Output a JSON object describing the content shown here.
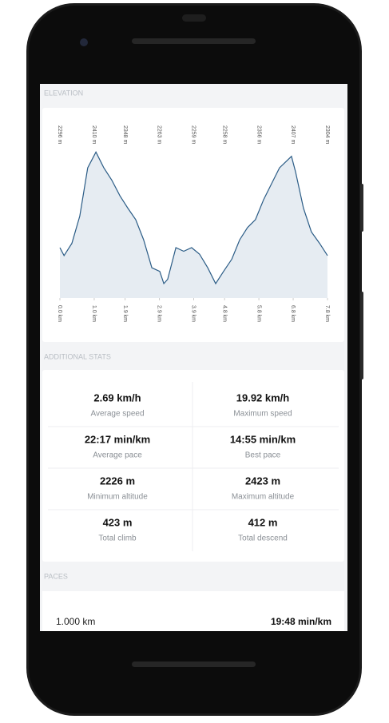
{
  "headings": {
    "elevation": "ELEVATION",
    "stats": "ADDITIONAL STATS",
    "paces": "PACES"
  },
  "chart_data": {
    "type": "area",
    "color": "#2b5c86",
    "fill": "#e6ecf2",
    "x": [
      0.0,
      0.12,
      0.35,
      0.58,
      0.81,
      1.05,
      1.28,
      1.51,
      1.75,
      1.98,
      2.21,
      2.44,
      2.68,
      2.91,
      3.03,
      3.14,
      3.38,
      3.61,
      3.84,
      4.07,
      4.31,
      4.54,
      4.77,
      5.01,
      5.24,
      5.47,
      5.7,
      5.94,
      6.17,
      6.4,
      6.64,
      6.75,
      6.87,
      7.1,
      7.33,
      7.57,
      7.8
    ],
    "values": [
      2290,
      2279,
      2296,
      2334,
      2401,
      2423,
      2401,
      2384,
      2362,
      2345,
      2329,
      2301,
      2262,
      2257,
      2240,
      2246,
      2290,
      2285,
      2290,
      2281,
      2262,
      2240,
      2257,
      2274,
      2301,
      2318,
      2329,
      2357,
      2379,
      2401,
      2412,
      2417,
      2395,
      2345,
      2312,
      2296,
      2279
    ],
    "xlim": [
      0,
      7.8
    ],
    "ylim": [
      2220,
      2430
    ],
    "xticks": [
      {
        "value": 0,
        "label": "0.0 km"
      },
      {
        "value": 1,
        "label": "1.0 km"
      },
      {
        "value": 1.9,
        "label": "1.9 km"
      },
      {
        "value": 2.9,
        "label": "2.9 km"
      },
      {
        "value": 3.9,
        "label": "3.9 km"
      },
      {
        "value": 4.8,
        "label": "4.8 km"
      },
      {
        "value": 5.8,
        "label": "5.8 km"
      },
      {
        "value": 6.8,
        "label": "6.8 km"
      },
      {
        "value": 7.8,
        "label": "7.8 km"
      }
    ],
    "top_labels": [
      "2296 m",
      "2410 m",
      "2348 m",
      "2263 m",
      "2259 m",
      "2258 m",
      "2356 m",
      "2407 m",
      "2304 m"
    ]
  },
  "stats": [
    {
      "value": "2.69 km/h",
      "label": "Average speed"
    },
    {
      "value": "19.92 km/h",
      "label": "Maximum speed"
    },
    {
      "value": "22:17 min/km",
      "label": "Average pace"
    },
    {
      "value": "14:55 min/km",
      "label": "Best pace"
    },
    {
      "value": "2226 m",
      "label": "Minimum altitude"
    },
    {
      "value": "2423 m",
      "label": "Maximum altitude"
    },
    {
      "value": "423 m",
      "label": "Total climb"
    },
    {
      "value": "412 m",
      "label": "Total descend"
    }
  ],
  "paces": [
    {
      "distance": "1.000 km",
      "pace": "19:48 min/km"
    }
  ]
}
